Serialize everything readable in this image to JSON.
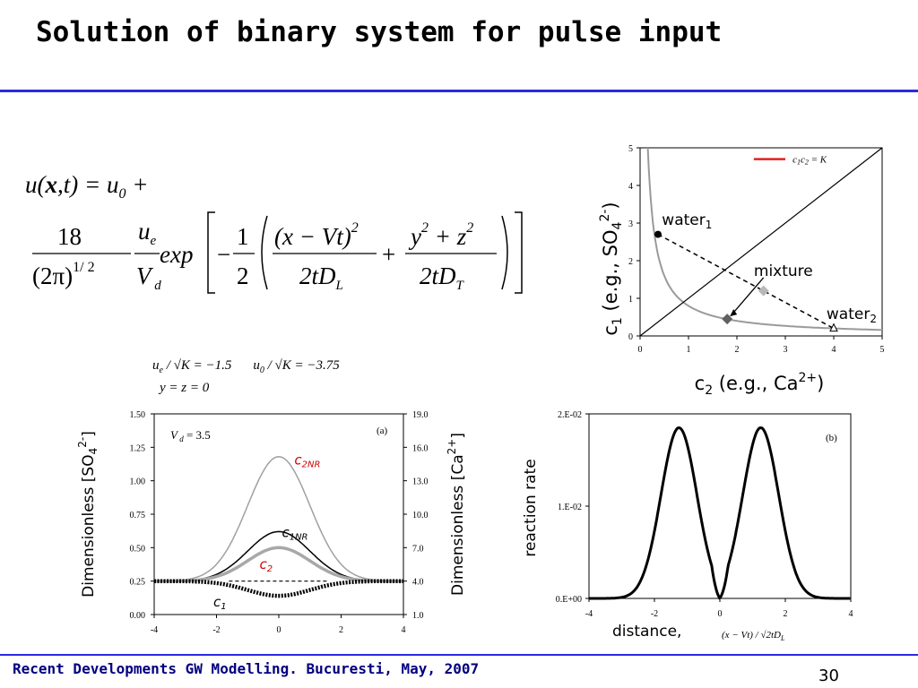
{
  "slide": {
    "title": "Solution of binary system for pulse input",
    "footer": "Recent Developments GW Modelling. Bucuresti, May, 2007",
    "page_number": "30",
    "accent_color": "#2b2be0"
  },
  "equation": {
    "lhs": "u(x,t) = u0 +",
    "frac1_num": "18",
    "frac1_den": "(2π)^1/2",
    "frac2_num": "u_e",
    "frac2_den": "V_d",
    "exp": "exp",
    "half_num": "1",
    "half_den": "2",
    "termA_num": "(x − Vt)^2",
    "termA_den": "2tD_L",
    "termB_num": "y^2 + z^2",
    "termB_den": "2tD_T"
  },
  "params": {
    "line1": "u_e / √K = −1.5     u_0 / √K = −3.75",
    "line2": "y = z = 0"
  },
  "chart_data": [
    {
      "type": "line",
      "panel_label": "",
      "xlabel": "c2 (e.g., Ca2+)",
      "ylabel": "c1 (e.g., SO42-)",
      "xlim": [
        0,
        5
      ],
      "ylim": [
        0,
        5
      ],
      "xticks": [
        "0",
        "1",
        "2",
        "3",
        "4",
        "5"
      ],
      "yticks": [
        "0",
        "1",
        "2",
        "3",
        "4",
        "5"
      ],
      "legend": {
        "label": "c1c2 = K",
        "color": "#e02020",
        "position": "top-right"
      },
      "series": [
        {
          "name": "",
          "kind": "hyperbola",
          "color": "#9a9a9a",
          "k": 0.8
        },
        {
          "name": "",
          "kind": "diagonal",
          "color": "#000000",
          "x": [
            0,
            5
          ],
          "y": [
            0,
            5
          ]
        }
      ],
      "mixing_line": {
        "x": [
          0.37,
          4.0
        ],
        "y": [
          2.7,
          0.2
        ],
        "color": "#000000"
      },
      "points": [
        {
          "name": "water1",
          "x": 0.37,
          "y": 2.7,
          "marker": "circle",
          "color": "#000000"
        },
        {
          "name": "mixture",
          "x": 2.55,
          "y": 1.2,
          "marker": "diamond",
          "color": "#b8b8b8"
        },
        {
          "name": "",
          "x": 1.8,
          "y": 0.45,
          "marker": "diamond",
          "color": "#606060"
        },
        {
          "name": "water2",
          "x": 4.0,
          "y": 0.2,
          "marker": "triangle",
          "color": "#000000"
        }
      ],
      "annotations": {
        "water1": "water1",
        "mixture": "mixture",
        "water2": "water2"
      }
    },
    {
      "type": "line",
      "panel_label": "(a)",
      "note": "V d = 3.5",
      "xlabel": "",
      "ylabel": "Dimensionless [SO42-]",
      "y2label": "Dimensionless [Ca2+]",
      "xlim": [
        -4,
        4
      ],
      "ylim": [
        0,
        1.5
      ],
      "y2lim": [
        1.0,
        19.0
      ],
      "xticks": [
        "-4",
        "-2",
        "0",
        "2",
        "4"
      ],
      "yticks": [
        "0.00",
        "0.25",
        "0.50",
        "0.75",
        "1.00",
        "1.25",
        "1.50"
      ],
      "y2ticks": [
        "1.0",
        "4.0",
        "7.0",
        "10.0",
        "13.0",
        "16.0",
        "19.0"
      ],
      "series": [
        {
          "name": "c2NR",
          "color": "#a0a0a0",
          "width": 1.5,
          "baseline": 0.25,
          "peak": 1.18,
          "sigma": 1.0
        },
        {
          "name": "c1NR",
          "color": "#000000",
          "width": 1.5,
          "baseline": 0.25,
          "peak": 0.62,
          "sigma": 1.0
        },
        {
          "name": "c2",
          "color": "#a8a8a8",
          "width": 3.5,
          "baseline": 0.25,
          "peak": 0.5,
          "sigma": 1.0
        },
        {
          "name": "c1",
          "color": "#000000",
          "width": 4.5,
          "baseline": 0.25,
          "peak": 0.14,
          "sigma": 1.0,
          "dashed": true
        }
      ],
      "series_labels": {
        "c2NR": "c2NR",
        "c1NR": "c1NR",
        "c2": "c2",
        "c1": "c1"
      }
    },
    {
      "type": "line",
      "panel_label": "(b)",
      "xlabel": "distance,",
      "xlabel_formula": "(x − Vt) / √(2tD_L)",
      "ylabel": "reaction rate",
      "xlim": [
        -4,
        4
      ],
      "ylim": [
        0,
        0.02
      ],
      "xticks": [
        "-4",
        "-2",
        "0",
        "2",
        "4"
      ],
      "yticks": [
        "0.E+00",
        "1.E-02",
        "2.E-02"
      ],
      "series": [
        {
          "name": "",
          "color": "#000000",
          "width": 3,
          "peaks": [
            -1.25,
            1.25
          ],
          "peak_value": 0.0185,
          "sigma": 0.55
        }
      ]
    }
  ]
}
